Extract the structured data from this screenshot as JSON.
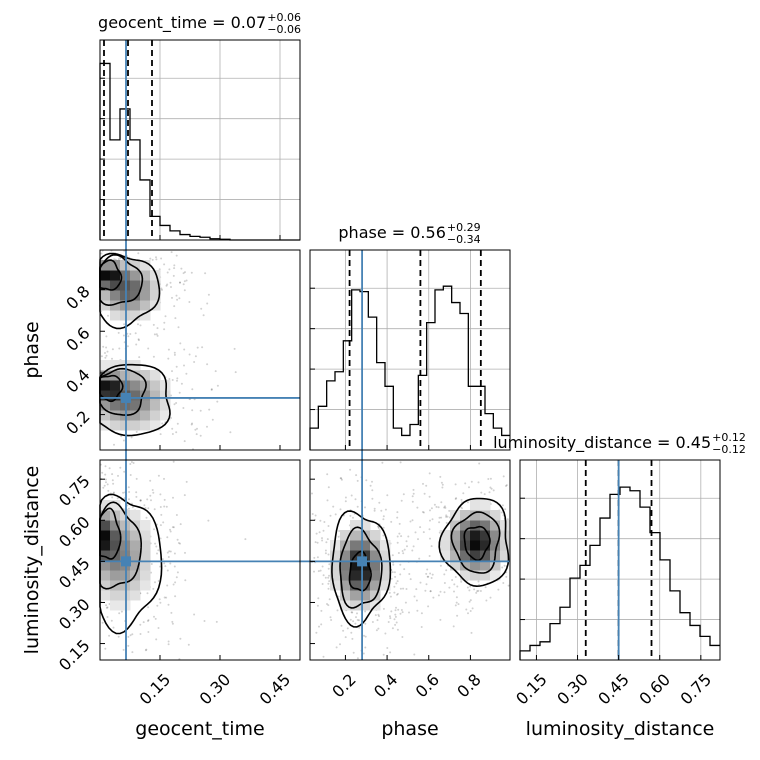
{
  "chart_data": {
    "type": "corner",
    "parameters": [
      "geocent_time",
      "phase",
      "luminosity_distance"
    ],
    "truth": {
      "geocent_time": 0.065,
      "phase": 0.28,
      "luminosity_distance": 0.45
    },
    "truth_color": "#4682b4",
    "grid": true,
    "titles": [
      {
        "label": "geocent_time = 0.07",
        "sup": "+0.06",
        "sub": "−0.06"
      },
      {
        "label": "phase = 0.56",
        "sup": "+0.29",
        "sub": "−0.34"
      },
      {
        "label": "luminosity_distance = 0.45",
        "sup": "+0.12",
        "sub": "−0.12"
      }
    ],
    "axes": {
      "geocent_time": {
        "range": [
          0.0,
          0.5
        ],
        "ticks": [
          0.15,
          0.3,
          0.45
        ],
        "ticklabels": [
          "0.15",
          "0.30",
          "0.45"
        ]
      },
      "phase": {
        "range": [
          0.03,
          0.99
        ],
        "ticks": [
          0.2,
          0.4,
          0.6,
          0.8
        ],
        "ticklabels": [
          "0.2",
          "0.4",
          "0.6",
          "0.8"
        ]
      },
      "luminosity_distance": {
        "range": [
          0.09,
          0.82
        ],
        "ticks": [
          0.15,
          0.3,
          0.45,
          0.6,
          0.75
        ],
        "ticklabels": [
          "0.15",
          "0.30",
          "0.45",
          "0.60",
          "0.75"
        ]
      }
    },
    "histograms": [
      {
        "param": "geocent_time",
        "bin_edges_start": 0.0,
        "bin_width": 0.025,
        "values": [
          0.97,
          0.55,
          0.72,
          0.55,
          0.33,
          0.13,
          0.08,
          0.05,
          0.03,
          0.02,
          0.015,
          0.007,
          0.004,
          0.0,
          0.0,
          0.0,
          0.0,
          0.0,
          0.0,
          0.0
        ],
        "quantiles": [
          0.01,
          0.07,
          0.13
        ]
      },
      {
        "param": "phase",
        "bin_edges_start": 0.03,
        "bin_width": 0.04,
        "values": [
          0.12,
          0.24,
          0.38,
          0.43,
          0.6,
          0.88,
          0.87,
          0.73,
          0.48,
          0.35,
          0.12,
          0.08,
          0.14,
          0.41,
          0.7,
          0.88,
          0.9,
          0.81,
          0.75,
          0.35,
          0.35,
          0.2,
          0.12,
          0.08
        ],
        "quantiles": [
          0.22,
          0.56,
          0.85
        ]
      },
      {
        "param": "luminosity_distance",
        "bin_edges_start": 0.09,
        "bin_width": 0.0365,
        "values": [
          0.05,
          0.08,
          0.1,
          0.2,
          0.29,
          0.45,
          0.52,
          0.63,
          0.78,
          0.91,
          0.95,
          0.93,
          0.84,
          0.7,
          0.55,
          0.38,
          0.26,
          0.19,
          0.13,
          0.08
        ],
        "quantiles": [
          0.33,
          0.45,
          0.57
        ]
      }
    ],
    "density_blobs": [
      {
        "x": "geocent_time",
        "y": "phase",
        "mu": [
          0.02,
          0.87
        ],
        "sd": [
          0.022,
          0.035
        ],
        "w": 1.0
      },
      {
        "x": "geocent_time",
        "y": "phase",
        "mu": [
          0.07,
          0.8
        ],
        "sd": [
          0.04,
          0.07
        ],
        "w": 0.7
      },
      {
        "x": "geocent_time",
        "y": "phase",
        "mu": [
          0.02,
          0.33
        ],
        "sd": [
          0.02,
          0.04
        ],
        "w": 0.9
      },
      {
        "x": "geocent_time",
        "y": "phase",
        "mu": [
          0.07,
          0.28
        ],
        "sd": [
          0.05,
          0.08
        ],
        "w": 0.65
      },
      {
        "x": "geocent_time",
        "y": "luminosity_distance",
        "mu": [
          0.01,
          0.54
        ],
        "sd": [
          0.02,
          0.05
        ],
        "w": 1.0
      },
      {
        "x": "geocent_time",
        "y": "luminosity_distance",
        "mu": [
          0.05,
          0.47
        ],
        "sd": [
          0.04,
          0.09
        ],
        "w": 0.6
      },
      {
        "x": "phase",
        "y": "luminosity_distance",
        "mu": [
          0.27,
          0.43
        ],
        "sd": [
          0.06,
          0.07
        ],
        "w": 1.0
      },
      {
        "x": "phase",
        "y": "luminosity_distance",
        "mu": [
          0.83,
          0.52
        ],
        "sd": [
          0.07,
          0.06
        ],
        "w": 1.0
      }
    ],
    "contour_sets": [
      {
        "x": "geocent_time",
        "y": "phase",
        "rings": [
          {
            "cx": 0.022,
            "cy": 0.865,
            "rx": 0.03,
            "ry": 0.07
          },
          {
            "cx": 0.045,
            "cy": 0.84,
            "rx": 0.058,
            "ry": 0.115
          },
          {
            "cx": 0.06,
            "cy": 0.8,
            "rx": 0.085,
            "ry": 0.17
          },
          {
            "cx": 0.025,
            "cy": 0.33,
            "rx": 0.03,
            "ry": 0.06
          },
          {
            "cx": 0.05,
            "cy": 0.31,
            "rx": 0.065,
            "ry": 0.11
          },
          {
            "cx": 0.07,
            "cy": 0.27,
            "rx": 0.11,
            "ry": 0.17
          }
        ]
      },
      {
        "x": "geocent_time",
        "y": "luminosity_distance",
        "rings": [
          {
            "cx": 0.02,
            "cy": 0.545,
            "rx": 0.03,
            "ry": 0.09
          },
          {
            "cx": 0.04,
            "cy": 0.5,
            "rx": 0.06,
            "ry": 0.15
          },
          {
            "cx": 0.06,
            "cy": 0.45,
            "rx": 0.09,
            "ry": 0.24
          }
        ]
      },
      {
        "x": "phase",
        "y": "luminosity_distance",
        "rings": [
          {
            "cx": 0.27,
            "cy": 0.41,
            "rx": 0.05,
            "ry": 0.07
          },
          {
            "cx": 0.27,
            "cy": 0.42,
            "rx": 0.1,
            "ry": 0.14
          },
          {
            "cx": 0.27,
            "cy": 0.43,
            "rx": 0.14,
            "ry": 0.2
          },
          {
            "cx": 0.83,
            "cy": 0.52,
            "rx": 0.06,
            "ry": 0.06
          },
          {
            "cx": 0.83,
            "cy": 0.52,
            "rx": 0.11,
            "ry": 0.11
          },
          {
            "cx": 0.83,
            "cy": 0.52,
            "rx": 0.16,
            "ry": 0.16
          }
        ]
      }
    ]
  }
}
